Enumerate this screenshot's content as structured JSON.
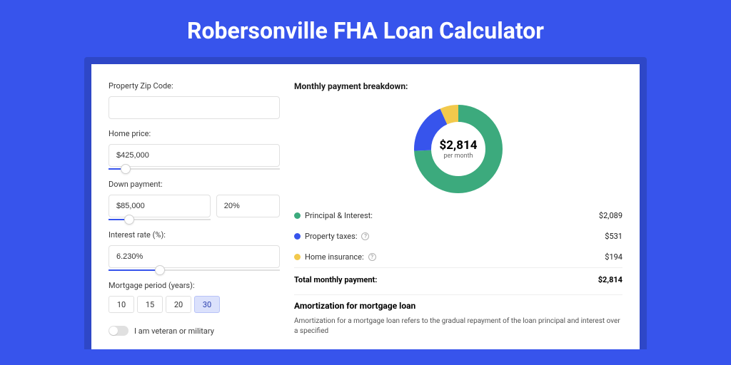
{
  "title": "Robersonville FHA Loan Calculator",
  "colors": {
    "page_bg": "#3754ec",
    "wrap_bg": "#2e47c7",
    "accent": "#3754ec",
    "principal": "#3caa7d",
    "taxes": "#3754ec",
    "insurance": "#f2c94c"
  },
  "form": {
    "zip": {
      "label": "Property Zip Code:",
      "value": ""
    },
    "price": {
      "label": "Home price:",
      "value": "$425,000",
      "slider_pct": 10
    },
    "down": {
      "label": "Down payment:",
      "value": "$85,000",
      "pct": "20%",
      "slider_pct": 20
    },
    "rate": {
      "label": "Interest rate (%):",
      "value": "6.230%",
      "slider_pct": 30
    },
    "period": {
      "label": "Mortgage period (years):",
      "options": [
        "10",
        "15",
        "20",
        "30"
      ],
      "selected": "30"
    },
    "veteran": {
      "label": "I am veteran or military",
      "checked": false
    }
  },
  "breakdown": {
    "title": "Monthly payment breakdown:",
    "donut": {
      "type": "donut",
      "value": "$2,814",
      "sub": "per month",
      "radius": 50,
      "stroke": 24,
      "segments": [
        {
          "key": "principal",
          "pct": 74.2,
          "color": "#3caa7d"
        },
        {
          "key": "taxes",
          "pct": 18.9,
          "color": "#3754ec"
        },
        {
          "key": "insurance",
          "pct": 6.9,
          "color": "#f2c94c"
        }
      ]
    },
    "items": [
      {
        "label": "Principal & Interest:",
        "value": "$2,089",
        "color": "#3caa7d",
        "info": false
      },
      {
        "label": "Property taxes:",
        "value": "$531",
        "color": "#3754ec",
        "info": true
      },
      {
        "label": "Home insurance:",
        "value": "$194",
        "color": "#f2c94c",
        "info": true
      }
    ],
    "total": {
      "label": "Total monthly payment:",
      "value": "$2,814"
    }
  },
  "amort": {
    "title": "Amortization for mortgage loan",
    "text": "Amortization for a mortgage loan refers to the gradual repayment of the loan principal and interest over a specified"
  }
}
